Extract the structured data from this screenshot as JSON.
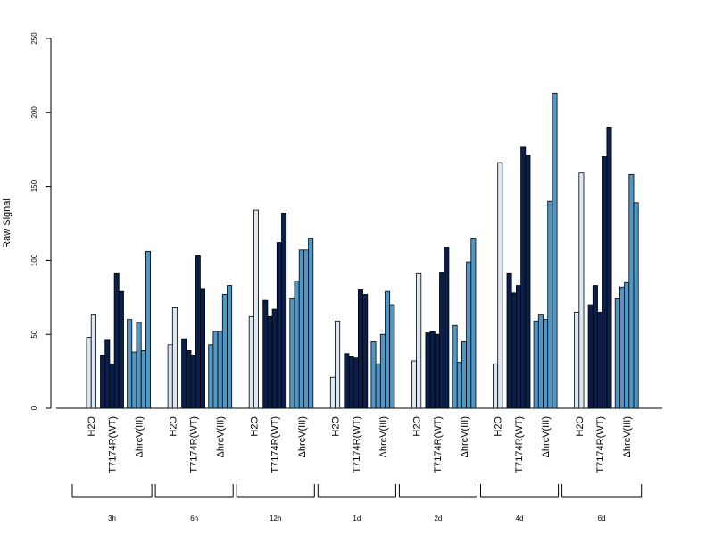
{
  "chart_data": {
    "type": "bar",
    "ylabel": "Raw Signal",
    "ylim": [
      0,
      250
    ],
    "yticks": [
      0,
      50,
      100,
      150,
      200,
      250
    ],
    "groups": [
      "H2O",
      "T7174R(WT)",
      "ΔhrcV(III)"
    ],
    "group_colors": [
      "#dbe7f3",
      "#0a1e4a",
      "#5097c6"
    ],
    "timepoints": [
      {
        "label": "3h",
        "groups": [
          {
            "name": "H2O",
            "values": [
              48,
              63
            ]
          },
          {
            "name": "T7174R(WT)",
            "values": [
              36,
              46,
              30,
              91,
              79
            ]
          },
          {
            "name": "ΔhrcV(III)",
            "values": [
              60,
              38,
              58,
              39,
              106
            ]
          }
        ]
      },
      {
        "label": "6h",
        "groups": [
          {
            "name": "H2O",
            "values": [
              43,
              68
            ]
          },
          {
            "name": "T7174R(WT)",
            "values": [
              47,
              39,
              36,
              103,
              81
            ]
          },
          {
            "name": "ΔhrcV(III)",
            "values": [
              43,
              52,
              52,
              77,
              83
            ]
          }
        ]
      },
      {
        "label": "12h",
        "groups": [
          {
            "name": "H2O",
            "values": [
              62,
              134
            ]
          },
          {
            "name": "T7174R(WT)",
            "values": [
              73,
              62,
              67,
              112,
              132
            ]
          },
          {
            "name": "ΔhrcV(III)",
            "values": [
              74,
              86,
              107,
              107,
              115
            ]
          }
        ]
      },
      {
        "label": "1d",
        "groups": [
          {
            "name": "H2O",
            "values": [
              21,
              59
            ]
          },
          {
            "name": "T7174R(WT)",
            "values": [
              37,
              35,
              34,
              80,
              77
            ]
          },
          {
            "name": "ΔhrcV(III)",
            "values": [
              45,
              30,
              50,
              79,
              70
            ]
          }
        ]
      },
      {
        "label": "2d",
        "groups": [
          {
            "name": "H2O",
            "values": [
              32,
              91
            ]
          },
          {
            "name": "T7174R(WT)",
            "values": [
              51,
              52,
              50,
              92,
              109
            ]
          },
          {
            "name": "ΔhrcV(III)",
            "values": [
              56,
              31,
              45,
              99,
              115
            ]
          }
        ]
      },
      {
        "label": "4d",
        "groups": [
          {
            "name": "H2O",
            "values": [
              30,
              166
            ]
          },
          {
            "name": "T7174R(WT)",
            "values": [
              91,
              78,
              83,
              177,
              171
            ]
          },
          {
            "name": "ΔhrcV(III)",
            "values": [
              59,
              63,
              60,
              140,
              213
            ]
          }
        ]
      },
      {
        "label": "6d",
        "groups": [
          {
            "name": "H2O",
            "values": [
              65,
              159
            ]
          },
          {
            "name": "T7174R(WT)",
            "values": [
              70,
              83,
              65,
              170,
              190
            ]
          },
          {
            "name": "ΔhrcV(III)",
            "values": [
              74,
              82,
              85,
              158,
              139
            ]
          }
        ]
      }
    ]
  }
}
